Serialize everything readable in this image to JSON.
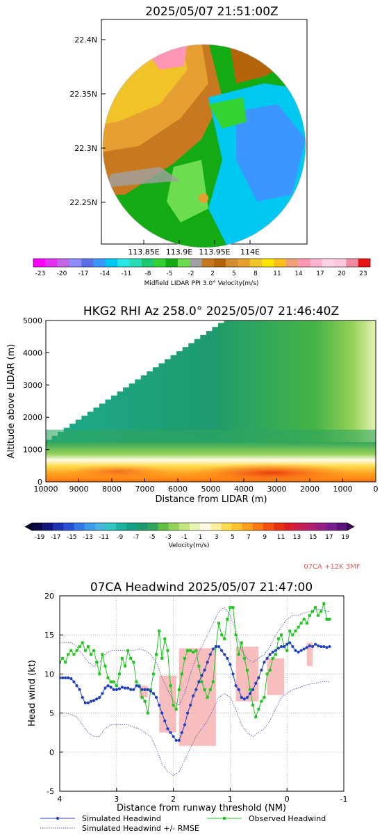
{
  "chart_data": [
    {
      "type": "heatmap",
      "title": "2025/05/07 21:51:00Z",
      "lat_ticks": [
        "22.4N",
        "22.35N",
        "22.3N",
        "22.25N"
      ],
      "lat_values": [
        22.4,
        22.35,
        22.3,
        22.25
      ],
      "lon_ticks": [
        "113.85E",
        "113.9E",
        "113.95E",
        "114E"
      ],
      "lon_values": [
        113.85,
        113.9,
        113.95,
        114.0
      ],
      "colorbar_label": "Midfield LIDAR PPI 3.0° Velocity(m/s)",
      "colorbar_ticks": [
        "-23",
        "-20",
        "-17",
        "-14",
        "-11",
        "-8",
        "-5",
        "-2",
        "2",
        "5",
        "8",
        "11",
        "14",
        "17",
        "20",
        "23"
      ],
      "colorbar_colors": [
        "#ff00ff",
        "#e133f0",
        "#c366e6",
        "#8c8cff",
        "#5a6ee6",
        "#3c96ff",
        "#00c8f0",
        "#28e6e6",
        "#28dcb4",
        "#1ec86e",
        "#32d232",
        "#14aa14",
        "#6edc50",
        "#a0a0a0",
        "#c8781e",
        "#b4640a",
        "#d28c32",
        "#e6a032",
        "#f0c328",
        "#ffe600",
        "#ffbe1e",
        "#f0a078",
        "#ff96b4",
        "#ffb4d2",
        "#ffd2e6",
        "#ffc8dc",
        "#f08ca0",
        "#e61414"
      ]
    },
    {
      "type": "heatmap",
      "title": "HKG2 RHI Az 258.0° 2025/05/07 21:46:40Z",
      "xlabel": "Distance from LIDAR (m)",
      "ylabel": "Altitude above LIDAR (m)",
      "x_ticks": [
        "10000",
        "9000",
        "8000",
        "7000",
        "6000",
        "5000",
        "4000",
        "3000",
        "2000",
        "1000",
        "0"
      ],
      "y_ticks": [
        "0",
        "1000",
        "2000",
        "3000",
        "4000",
        "5000"
      ],
      "xlim": [
        10000,
        0
      ],
      "ylim": [
        0,
        5000
      ],
      "colorbar_label": "Velocity(m/s)",
      "colorbar_ticks": [
        "-19",
        "-17",
        "-15",
        "-13",
        "-11",
        "-9",
        "-7",
        "-5",
        "-3",
        "-1",
        "1",
        "3",
        "5",
        "7",
        "9",
        "11",
        "13",
        "15",
        "17",
        "19"
      ],
      "colorbar_colors": [
        "#0a0a46",
        "#14147d",
        "#1e32b4",
        "#2850d2",
        "#3278e6",
        "#3c9be6",
        "#46b4dc",
        "#32c3c3",
        "#1eafa0",
        "#14a082",
        "#1e9b6e",
        "#32a55a",
        "#64be46",
        "#96d25a",
        "#c3e682",
        "#e6f5b4",
        "#fffae6",
        "#fff0a0",
        "#ffdc50",
        "#ffc32d",
        "#ffa01e",
        "#ff7814",
        "#f5500f",
        "#e6320f",
        "#dc1e28",
        "#c81e50",
        "#b41e6e",
        "#961e82",
        "#781e8c",
        "#5a1478"
      ]
    },
    {
      "type": "line",
      "annotation": "07CA +12K 3MF",
      "title": "07CA Headwind 2025/05/07 21:47:00",
      "xlabel": "Distance from runway threshold (NM)",
      "ylabel": "Head wind (kt)",
      "xlim": [
        4,
        -1
      ],
      "ylim": [
        -5,
        20
      ],
      "x_ticks": [
        "4",
        "3",
        "2",
        "1",
        "0",
        "-1"
      ],
      "y_ticks": [
        "-5",
        "0",
        "5",
        "10",
        "15",
        "20"
      ],
      "x_tick_values": [
        4,
        3,
        2,
        1,
        0,
        -1
      ],
      "y_tick_values": [
        -5,
        0,
        5,
        10,
        15,
        20
      ],
      "legend": [
        {
          "label": "Simulated Headwind",
          "color": "#1f3fbf",
          "style": "dot-line"
        },
        {
          "label": "Observed Headwind",
          "color": "#22c422",
          "style": "square-line"
        },
        {
          "label": "Simulated Headwind +/- RMSE",
          "color": "#5060b0",
          "style": "dotted"
        }
      ],
      "series": [
        {
          "name": "Simulated Headwind",
          "x": [
            4.0,
            3.95,
            3.9,
            3.85,
            3.8,
            3.75,
            3.7,
            3.65,
            3.6,
            3.55,
            3.5,
            3.45,
            3.4,
            3.35,
            3.3,
            3.25,
            3.2,
            3.15,
            3.1,
            3.05,
            3.0,
            2.95,
            2.9,
            2.85,
            2.8,
            2.75,
            2.7,
            2.65,
            2.6,
            2.55,
            2.5,
            2.45,
            2.4,
            2.35,
            2.3,
            2.25,
            2.2,
            2.15,
            2.1,
            2.05,
            2.0,
            1.95,
            1.9,
            1.85,
            1.8,
            1.75,
            1.7,
            1.65,
            1.6,
            1.55,
            1.5,
            1.45,
            1.4,
            1.35,
            1.3,
            1.25,
            1.2,
            1.15,
            1.1,
            1.05,
            1.0,
            0.95,
            0.9,
            0.85,
            0.8,
            0.75,
            0.7,
            0.65,
            0.6,
            0.55,
            0.5,
            0.45,
            0.4,
            0.35,
            0.3,
            0.25,
            0.2,
            0.15,
            0.1,
            0.05,
            0.0,
            -0.05,
            -0.1,
            -0.15,
            -0.2,
            -0.25,
            -0.3,
            -0.35,
            -0.4,
            -0.45,
            -0.5,
            -0.55,
            -0.6,
            -0.65,
            -0.7,
            -0.75
          ],
          "y": [
            9.5,
            9.5,
            9.5,
            9.5,
            9.4,
            9.0,
            8.5,
            8.0,
            7.0,
            6.3,
            6.3,
            6.5,
            6.6,
            6.8,
            7.0,
            7.5,
            8.2,
            8.5,
            8.3,
            8.0,
            8.0,
            8.1,
            8.3,
            8.2,
            8.2,
            8.0,
            8.0,
            8.5,
            8.4,
            8.0,
            8.0,
            8.0,
            7.8,
            7.5,
            7.0,
            6.0,
            5.0,
            4.0,
            3.0,
            2.5,
            2.0,
            1.5,
            1.5,
            2.5,
            3.5,
            5.0,
            6.0,
            7.2,
            8.0,
            9.0,
            9.8,
            10.5,
            11.5,
            12.5,
            13.2,
            13.5,
            13.5,
            13.0,
            12.5,
            12.0,
            11.2,
            10.0,
            8.5,
            8.0,
            7.0,
            6.8,
            7.0,
            7.5,
            8.0,
            8.8,
            9.5,
            10.5,
            11.5,
            12.0,
            12.5,
            12.8,
            13.0,
            13.3,
            13.5,
            13.5,
            13.8,
            14.0,
            13.5,
            13.0,
            12.8,
            13.0,
            13.2,
            13.4,
            13.6,
            13.5,
            13.8,
            13.6,
            13.5,
            13.5,
            13.4,
            13.5
          ]
        },
        {
          "name": "Observed Headwind",
          "x": [
            4.0,
            3.95,
            3.9,
            3.85,
            3.8,
            3.75,
            3.7,
            3.65,
            3.6,
            3.55,
            3.5,
            3.45,
            3.4,
            3.35,
            3.3,
            3.25,
            3.2,
            3.15,
            3.1,
            3.05,
            3.0,
            2.95,
            2.9,
            2.85,
            2.8,
            2.75,
            2.7,
            2.65,
            2.6,
            2.55,
            2.5,
            2.45,
            2.4,
            2.35,
            2.3,
            2.25,
            2.2,
            2.15,
            2.1,
            2.05,
            2.0,
            1.95,
            1.9,
            1.85,
            1.8,
            1.75,
            1.7,
            1.65,
            1.6,
            1.55,
            1.5,
            1.45,
            1.4,
            1.35,
            1.3,
            1.25,
            1.2,
            1.15,
            1.1,
            1.05,
            1.0,
            0.95,
            0.9,
            0.85,
            0.8,
            0.75,
            0.7,
            0.65,
            0.6,
            0.55,
            0.5,
            0.45,
            0.4,
            0.35,
            0.3,
            0.25,
            0.2,
            0.15,
            0.1,
            0.05,
            0.0,
            -0.05,
            -0.1,
            -0.15,
            -0.2,
            -0.25,
            -0.3,
            -0.35,
            -0.4,
            -0.45,
            -0.5,
            -0.55,
            -0.6,
            -0.65,
            -0.7,
            -0.75
          ],
          "y": [
            11.5,
            12.0,
            11.5,
            12.5,
            13.0,
            12.5,
            13.0,
            13.5,
            14.0,
            13.0,
            13.5,
            12.5,
            13.0,
            11.5,
            10.0,
            12.5,
            11.0,
            9.5,
            9.0,
            9.0,
            8.5,
            10.0,
            12.0,
            11.0,
            13.0,
            12.0,
            11.5,
            9.0,
            8.5,
            7.0,
            6.5,
            5.0,
            8.0,
            10.0,
            12.5,
            15.5,
            12.0,
            14.5,
            13.0,
            8.5,
            6.0,
            5.5,
            8.0,
            10.0,
            12.0,
            13.0,
            13.0,
            12.8,
            13.0,
            11.0,
            9.0,
            8.0,
            7.0,
            8.0,
            9.0,
            13.5,
            16.5,
            15.0,
            14.5,
            17.0,
            18.5,
            18.5,
            15.0,
            12.5,
            14.0,
            12.0,
            10.5,
            8.0,
            6.0,
            4.5,
            5.5,
            6.5,
            7.0,
            10.0,
            10.5,
            12.0,
            12.5,
            14.5,
            15.0,
            13.5,
            13.0,
            15.5,
            15.0,
            15.5,
            16.0,
            16.5,
            17.0,
            16.5,
            17.5,
            18.0,
            18.5,
            17.5,
            18.0,
            19.0,
            17.0,
            17.0
          ]
        },
        {
          "name": "Simulated Headwind +/- RMSE (upper)",
          "x": [
            4.0,
            3.9,
            3.8,
            3.7,
            3.6,
            3.5,
            3.4,
            3.3,
            3.2,
            3.1,
            3.0,
            2.9,
            2.8,
            2.7,
            2.6,
            2.5,
            2.4,
            2.3,
            2.2,
            2.1,
            2.0,
            1.9,
            1.8,
            1.7,
            1.6,
            1.5,
            1.4,
            1.3,
            1.2,
            1.1,
            1.0,
            0.9,
            0.8,
            0.7,
            0.6,
            0.5,
            0.4,
            0.3,
            0.2,
            0.1,
            0.0,
            -0.1,
            -0.2,
            -0.3,
            -0.4,
            -0.5,
            -0.6,
            -0.7,
            -0.75
          ],
          "y": [
            14.0,
            14.0,
            14.0,
            13.5,
            12.5,
            11.5,
            11.0,
            11.5,
            12.5,
            13.0,
            13.0,
            13.0,
            13.0,
            13.0,
            13.2,
            13.0,
            12.5,
            11.5,
            9.5,
            8.0,
            6.5,
            6.0,
            7.5,
            10.0,
            12.0,
            13.5,
            15.0,
            16.5,
            18.0,
            18.5,
            17.5,
            15.5,
            13.0,
            12.0,
            11.5,
            12.0,
            12.5,
            13.5,
            15.0,
            16.0,
            17.0,
            17.5,
            17.5,
            17.8,
            18.0,
            18.2,
            18.3,
            18.0,
            18.0
          ]
        },
        {
          "name": "Simulated Headwind +/- RMSE (lower)",
          "x": [
            4.0,
            3.9,
            3.8,
            3.7,
            3.6,
            3.5,
            3.4,
            3.3,
            3.2,
            3.1,
            3.0,
            2.9,
            2.8,
            2.7,
            2.6,
            2.5,
            2.4,
            2.3,
            2.2,
            2.1,
            2.0,
            1.9,
            1.8,
            1.7,
            1.6,
            1.5,
            1.4,
            1.3,
            1.2,
            1.1,
            1.0,
            0.9,
            0.8,
            0.7,
            0.6,
            0.5,
            0.4,
            0.3,
            0.2,
            0.1,
            0.0,
            -0.1,
            -0.2,
            -0.3,
            -0.4,
            -0.5,
            -0.6,
            -0.7,
            -0.75
          ],
          "y": [
            5.0,
            5.0,
            4.8,
            4.5,
            3.5,
            2.5,
            2.0,
            2.0,
            3.0,
            3.5,
            3.5,
            3.5,
            3.5,
            3.2,
            3.0,
            2.5,
            2.0,
            0.5,
            -1.5,
            -2.5,
            -3.0,
            -2.5,
            -1.0,
            0.5,
            2.0,
            3.0,
            4.0,
            5.5,
            7.0,
            7.5,
            7.0,
            5.5,
            3.5,
            2.5,
            2.0,
            2.5,
            3.0,
            4.0,
            5.5,
            7.0,
            7.5,
            8.0,
            8.2,
            8.5,
            8.7,
            8.8,
            9.0,
            9.0,
            9.0
          ]
        }
      ],
      "shaded_boxes": [
        {
          "x0": 2.6,
          "x1": 2.45,
          "y0": 7.0,
          "y1": 8.5
        },
        {
          "x0": 2.25,
          "x1": 1.95,
          "y0": 2.5,
          "y1": 9.8
        },
        {
          "x0": 1.9,
          "x1": 1.25,
          "y0": 0.8,
          "y1": 13.3
        },
        {
          "x0": 0.9,
          "x1": 0.5,
          "y0": 6.5,
          "y1": 13.5
        },
        {
          "x0": 0.35,
          "x1": 0.05,
          "y0": 7.3,
          "y1": 12.0
        },
        {
          "x0": -0.35,
          "x1": -0.45,
          "y0": 11.0,
          "y1": 14.0
        }
      ]
    }
  ]
}
